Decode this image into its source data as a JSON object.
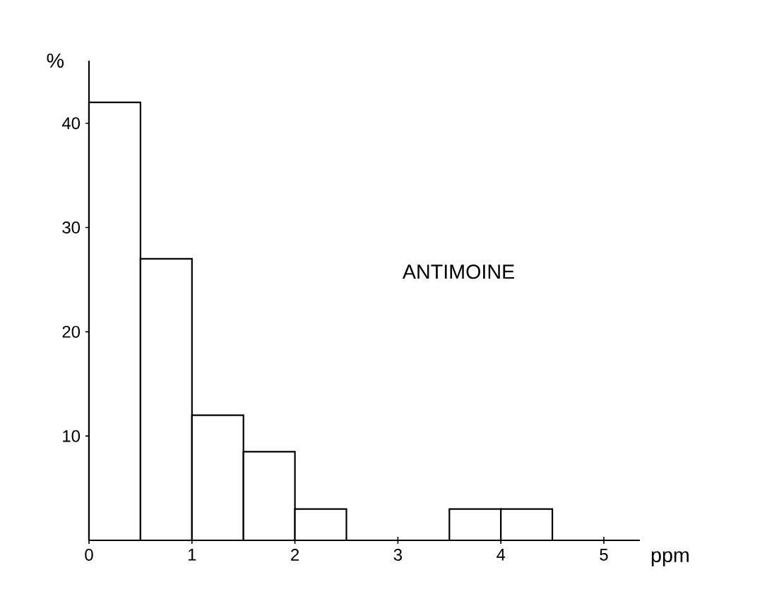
{
  "chart_data": {
    "type": "histogram",
    "xlabel": "ppm",
    "ylabel": "%",
    "annotations": [
      "ANTIMOINE"
    ],
    "bins": [
      0,
      0.5,
      1,
      1.5,
      2,
      2.5,
      3,
      3.5,
      4,
      4.5
    ],
    "values": [
      42,
      27,
      12,
      8.5,
      3,
      0,
      0,
      3,
      3
    ],
    "color": "#000000",
    "xlim": [
      0,
      5.35
    ],
    "ylim": [
      0,
      46
    ],
    "xticks": [
      0,
      1,
      2,
      3,
      4,
      5
    ],
    "yticks": [
      10,
      20,
      30,
      40
    ],
    "grid": false
  }
}
